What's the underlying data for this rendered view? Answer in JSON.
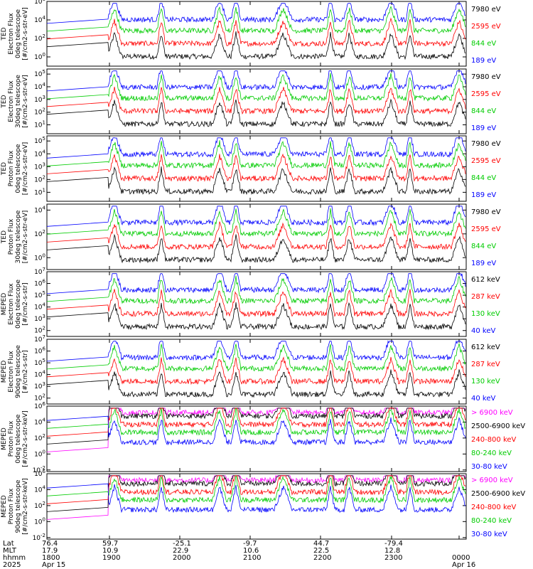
{
  "colors": {
    "black": "#000000",
    "red": "#ff0000",
    "green": "#00dd00",
    "blue": "#0000ff",
    "magenta": "#ff00ff"
  },
  "chart_data": [
    {
      "type": "line",
      "ylabel": [
        "TED",
        "Electron Flux",
        "0deg telescope",
        "[#/cm2-s-str-eV]"
      ],
      "yticks": [
        "10^6",
        "10^4",
        "10^2",
        "10^0"
      ],
      "ylim_log": [
        -1,
        6
      ],
      "series": [
        {
          "name": "7980 eV",
          "color": "#000000"
        },
        {
          "name": "2595 eV",
          "color": "#ff0000"
        },
        {
          "name": "844 eV",
          "color": "#00dd00"
        },
        {
          "name": "189 eV",
          "color": "#0000ff"
        }
      ]
    },
    {
      "type": "line",
      "ylabel": [
        "TED",
        "Electron Flux",
        "30deg telescope",
        "[#/cm2-s-str-eV]"
      ],
      "yticks": [
        "10^5",
        "10^4",
        "10^3",
        "10^2",
        "10^1"
      ],
      "ylim_log": [
        0.3,
        5.4
      ],
      "series": [
        {
          "name": "7980 eV",
          "color": "#000000"
        },
        {
          "name": "2595 eV",
          "color": "#ff0000"
        },
        {
          "name": "844 eV",
          "color": "#00dd00"
        },
        {
          "name": "189 eV",
          "color": "#0000ff"
        }
      ]
    },
    {
      "type": "line",
      "ylabel": [
        "TED",
        "Proton Flux",
        "0deg telescope",
        "[#/cm2-s-str-eV]"
      ],
      "yticks": [
        "10^5",
        "10^4",
        "10^3",
        "10^2",
        "10^1"
      ],
      "ylim_log": [
        0.3,
        5.4
      ],
      "series": [
        {
          "name": "7980 eV",
          "color": "#000000"
        },
        {
          "name": "2595 eV",
          "color": "#ff0000"
        },
        {
          "name": "844 eV",
          "color": "#00dd00"
        },
        {
          "name": "189 eV",
          "color": "#0000ff"
        }
      ]
    },
    {
      "type": "line",
      "ylabel": [
        "TED",
        "Proton Flux",
        "30deg telescope",
        "[#/cm2-s-str-eV]"
      ],
      "yticks": [
        "10^4",
        "10^2",
        "10^0"
      ],
      "ylim_log": [
        -1,
        4.5
      ],
      "series": [
        {
          "name": "7980 eV",
          "color": "#000000"
        },
        {
          "name": "2595 eV",
          "color": "#ff0000"
        },
        {
          "name": "844 eV",
          "color": "#00dd00"
        },
        {
          "name": "189 eV",
          "color": "#0000ff"
        }
      ]
    },
    {
      "type": "line",
      "ylabel": [
        "MEPED",
        "Electron Flux",
        "0deg telescope",
        "[#/cm2-s-str]"
      ],
      "yticks": [
        "10^7",
        "10^6",
        "10^5",
        "10^4",
        "10^3",
        "10^2"
      ],
      "ylim_log": [
        1.5,
        7
      ],
      "series": [
        {
          "name": "612 keV",
          "color": "#000000"
        },
        {
          "name": "287 keV",
          "color": "#ff0000"
        },
        {
          "name": "130 keV",
          "color": "#00dd00"
        },
        {
          "name": "40 keV",
          "color": "#0000ff"
        }
      ]
    },
    {
      "type": "line",
      "ylabel": [
        "MEPED",
        "Electron Flux",
        "90deg telescope",
        "[#/cm2-s-str]"
      ],
      "yticks": [
        "10^7",
        "10^6",
        "10^5",
        "10^4",
        "10^3",
        "10^2"
      ],
      "ylim_log": [
        1.5,
        7
      ],
      "series": [
        {
          "name": "612 keV",
          "color": "#000000"
        },
        {
          "name": "287 keV",
          "color": "#ff0000"
        },
        {
          "name": "130 keV",
          "color": "#00dd00"
        },
        {
          "name": "40 keV",
          "color": "#0000ff"
        }
      ]
    },
    {
      "type": "line",
      "ylabel": [
        "MEPED",
        "Proton Flux",
        "0deg telescope",
        "[#/cm2-s-str-keV]"
      ],
      "yticks": [
        "10^6",
        "10^4",
        "10^2",
        "10^0",
        "10^-2"
      ],
      "ylim_log": [
        -2.2,
        6
      ],
      "series": [
        {
          "name": "> 6900 keV",
          "color": "#ff00ff"
        },
        {
          "name": "2500-6900 keV",
          "color": "#000000"
        },
        {
          "name": "240-800 keV",
          "color": "#ff0000"
        },
        {
          "name": "80-240 keV",
          "color": "#00dd00"
        },
        {
          "name": "30-80 keV",
          "color": "#0000ff"
        }
      ]
    },
    {
      "type": "line",
      "ylabel": [
        "MEPED",
        "Proton Flux",
        "90deg telescope",
        "[#/cm2-s-str-keV]"
      ],
      "yticks": [
        "10^6",
        "10^4",
        "10^2",
        "10^0",
        "10^-2"
      ],
      "ylim_log": [
        -2.2,
        6
      ],
      "series": [
        {
          "name": "> 6900 keV",
          "color": "#ff00ff"
        },
        {
          "name": "2500-6900 keV",
          "color": "#000000"
        },
        {
          "name": "240-800 keV",
          "color": "#ff0000"
        },
        {
          "name": "80-240 keV",
          "color": "#00dd00"
        },
        {
          "name": "30-80 keV",
          "color": "#0000ff"
        }
      ]
    }
  ],
  "xaxis": {
    "row_labels": [
      "Lat",
      "MLT",
      "hhmm",
      "2025"
    ],
    "columns": [
      {
        "lat": "76.4",
        "mlt": "17.9",
        "hhmm": "1800",
        "date": "Apr 15"
      },
      {
        "lat": "59.7",
        "mlt": "10.9",
        "hhmm": "1900",
        "date": ""
      },
      {
        "lat": "-25.1",
        "mlt": "22.9",
        "hhmm": "2000",
        "date": ""
      },
      {
        "lat": "-9.7",
        "mlt": "10.6",
        "hhmm": "2100",
        "date": ""
      },
      {
        "lat": "44.7",
        "mlt": "22.5",
        "hhmm": "2200",
        "date": ""
      },
      {
        "lat": "-79.4",
        "mlt": "12.8",
        "hhmm": "2300",
        "date": ""
      },
      {
        "lat": "",
        "mlt": "",
        "hhmm": "0000",
        "date": "Apr 16"
      }
    ]
  }
}
